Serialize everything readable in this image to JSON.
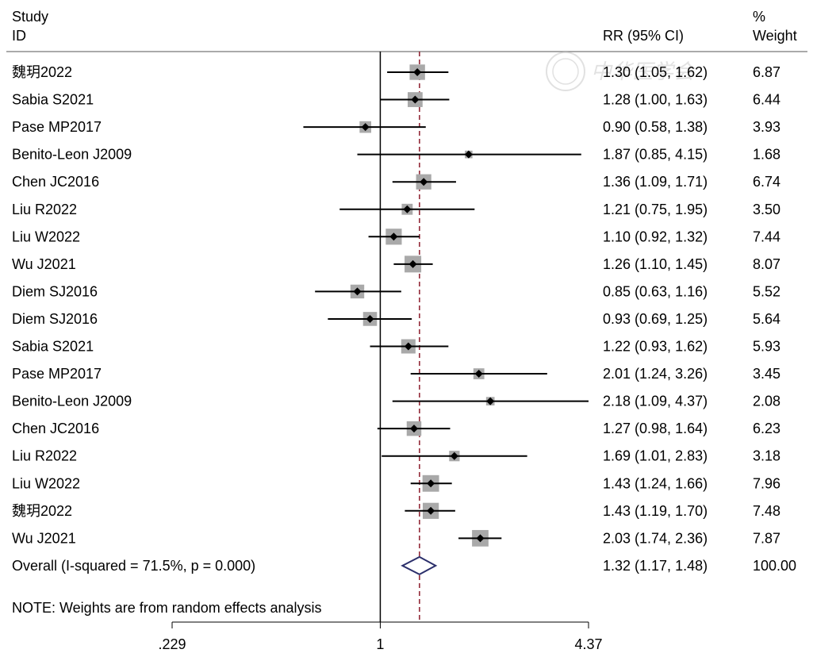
{
  "chart_data": {
    "type": "forest",
    "headers": {
      "study_line1": "Study",
      "study_line2": "ID",
      "effect": "RR (95% CI)",
      "weight_line1": "%",
      "weight_line2": "Weight"
    },
    "x_scale": "log",
    "x_range": [
      0.229,
      4.37
    ],
    "x_ticks": [
      {
        "value": 0.229,
        "label": ".229"
      },
      {
        "value": 1,
        "label": "1"
      },
      {
        "value": 4.37,
        "label": "4.37"
      }
    ],
    "null_line": 1,
    "studies": [
      {
        "id": "魏玥2022",
        "rr": 1.3,
        "lo": 1.05,
        "hi": 1.62,
        "ci_text": "1.30 (1.05, 1.62)",
        "weight": "6.87"
      },
      {
        "id": "Sabia S2021",
        "rr": 1.28,
        "lo": 1.0,
        "hi": 1.63,
        "ci_text": "1.28 (1.00, 1.63)",
        "weight": "6.44"
      },
      {
        "id": "Pase MP2017",
        "rr": 0.9,
        "lo": 0.58,
        "hi": 1.38,
        "ci_text": "0.90 (0.58, 1.38)",
        "weight": "3.93"
      },
      {
        "id": "Benito-Leon J2009",
        "rr": 1.87,
        "lo": 0.85,
        "hi": 4.15,
        "ci_text": "1.87 (0.85, 4.15)",
        "weight": "1.68"
      },
      {
        "id": "Chen JC2016",
        "rr": 1.36,
        "lo": 1.09,
        "hi": 1.71,
        "ci_text": "1.36 (1.09, 1.71)",
        "weight": "6.74"
      },
      {
        "id": "Liu R2022",
        "rr": 1.21,
        "lo": 0.75,
        "hi": 1.95,
        "ci_text": "1.21 (0.75, 1.95)",
        "weight": "3.50"
      },
      {
        "id": "Liu W2022",
        "rr": 1.1,
        "lo": 0.92,
        "hi": 1.32,
        "ci_text": "1.10 (0.92, 1.32)",
        "weight": "7.44"
      },
      {
        "id": "Wu J2021",
        "rr": 1.26,
        "lo": 1.1,
        "hi": 1.45,
        "ci_text": "1.26 (1.10, 1.45)",
        "weight": "8.07"
      },
      {
        "id": "Diem SJ2016",
        "rr": 0.85,
        "lo": 0.63,
        "hi": 1.16,
        "ci_text": "0.85 (0.63, 1.16)",
        "weight": "5.52"
      },
      {
        "id": "Diem SJ2016",
        "rr": 0.93,
        "lo": 0.69,
        "hi": 1.25,
        "ci_text": "0.93 (0.69, 1.25)",
        "weight": "5.64"
      },
      {
        "id": "Sabia S2021",
        "rr": 1.22,
        "lo": 0.93,
        "hi": 1.62,
        "ci_text": "1.22 (0.93, 1.62)",
        "weight": "5.93"
      },
      {
        "id": "Pase MP2017",
        "rr": 2.01,
        "lo": 1.24,
        "hi": 3.26,
        "ci_text": "2.01 (1.24, 3.26)",
        "weight": "3.45"
      },
      {
        "id": "Benito-Leon J2009",
        "rr": 2.18,
        "lo": 1.09,
        "hi": 4.37,
        "ci_text": "2.18 (1.09, 4.37)",
        "weight": "2.08"
      },
      {
        "id": "Chen JC2016",
        "rr": 1.27,
        "lo": 0.98,
        "hi": 1.64,
        "ci_text": "1.27 (0.98, 1.64)",
        "weight": "6.23"
      },
      {
        "id": "Liu R2022",
        "rr": 1.69,
        "lo": 1.01,
        "hi": 2.83,
        "ci_text": "1.69 (1.01, 2.83)",
        "weight": "3.18"
      },
      {
        "id": "Liu W2022",
        "rr": 1.43,
        "lo": 1.24,
        "hi": 1.66,
        "ci_text": "1.43 (1.24, 1.66)",
        "weight": "7.96"
      },
      {
        "id": "魏玥2022",
        "rr": 1.43,
        "lo": 1.19,
        "hi": 1.7,
        "ci_text": "1.43 (1.19, 1.70)",
        "weight": "7.48"
      },
      {
        "id": "Wu J2021",
        "rr": 2.03,
        "lo": 1.74,
        "hi": 2.36,
        "ci_text": "2.03 (1.74, 2.36)",
        "weight": "7.87"
      }
    ],
    "overall": {
      "label": "Overall  (I-squared = 71.5%, p = 0.000)",
      "rr": 1.32,
      "lo": 1.17,
      "hi": 1.48,
      "ci_text": "1.32 (1.17, 1.48)",
      "weight": "100.00"
    },
    "note": "NOTE: Weights are from random effects analysis",
    "colors": {
      "box": "#a9a9a9",
      "line": "#000000",
      "overall_diamond": "#2b2f6b",
      "overall_line": "#8b1a2b",
      "watermark": "#c9c9c9"
    },
    "watermark_text": "中华医学会"
  }
}
